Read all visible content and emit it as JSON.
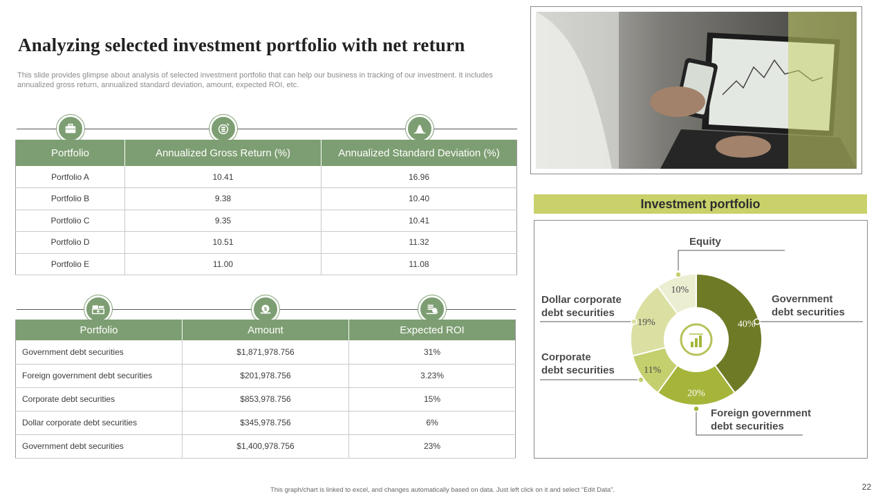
{
  "title": "Analyzing selected investment portfolio with net return",
  "subtitle": "This slide provides glimpse about analysis of selected investment portfolio that can help our business in tracking of our investment. It includes annualized gross return, annualized standard deviation, amount, expected ROI, etc.",
  "icons_row1": [
    "briefcase-icon",
    "money-bag-icon",
    "bell-curve-icon"
  ],
  "icons_row2": [
    "cash-stack-icon",
    "coins-icon",
    "coin-hand-icon"
  ],
  "table1": {
    "headers": [
      "Portfolio",
      "Annualized Gross Return (%)",
      "Annualized Standard Deviation (%)"
    ],
    "rows": [
      [
        "Portfolio A",
        "10.41",
        "16.96"
      ],
      [
        "Portfolio B",
        "9.38",
        "10.40"
      ],
      [
        "Portfolio C",
        "9.35",
        "10.41"
      ],
      [
        "Portfolio D",
        "10.51",
        "11.32"
      ],
      [
        "Portfolio E",
        "11.00",
        "11.08"
      ]
    ]
  },
  "table2": {
    "headers": [
      "Portfolio",
      "Amount",
      "Expected ROI"
    ],
    "rows": [
      [
        "Government  debt securities",
        "$1,871,978.756",
        "31%"
      ],
      [
        "Foreign government  debt securities",
        "$201,978.756",
        "3.23%"
      ],
      [
        "Corporate  debt securities",
        "$853,978.756",
        "15%"
      ],
      [
        "Dollar corporate  debt securities",
        "$345,978.756",
        "6%"
      ],
      [
        "Government  debt securities",
        "$1,400,978.756",
        "23%"
      ]
    ]
  },
  "chart_data": {
    "type": "pie",
    "title": "Investment portfolio",
    "donut": true,
    "slices": [
      {
        "label": "Government debt securities",
        "value": 40,
        "display": "40%",
        "color": "#6f7a26"
      },
      {
        "label": "Foreign government debt securities",
        "value": 20,
        "display": "20%",
        "color": "#a6b53a"
      },
      {
        "label": "Corporate debt securities",
        "value": 11,
        "display": "11%",
        "color": "#c4cf6e"
      },
      {
        "label": "Dollar corporate debt securities",
        "value": 19,
        "display": "19%",
        "color": "#dbe0a2"
      },
      {
        "label": "Equity",
        "value": 10,
        "display": "10%",
        "color": "#eceed2"
      }
    ],
    "legend_labels": {
      "equity": "Equity",
      "government": [
        "Government",
        "debt securities"
      ],
      "foreign": [
        "Foreign government",
        "debt securities"
      ],
      "corporate": [
        "Corporate",
        "debt securities"
      ],
      "dollar": [
        "Dollar corporate",
        "debt securities"
      ]
    },
    "center_icon": "chart-badge-icon"
  },
  "footer_note": "This graph/chart is linked to excel, and changes automatically based on data. Just left click on it and select “Edit Data”.",
  "page_number": "22"
}
